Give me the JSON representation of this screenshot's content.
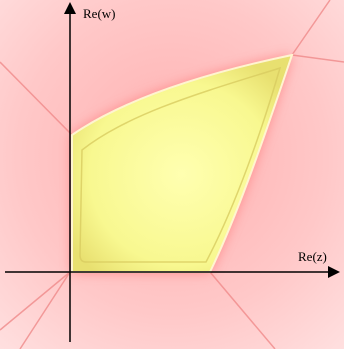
{
  "labels": {
    "y_axis": "Re(w)",
    "x_axis": "Re(z)"
  }
}
